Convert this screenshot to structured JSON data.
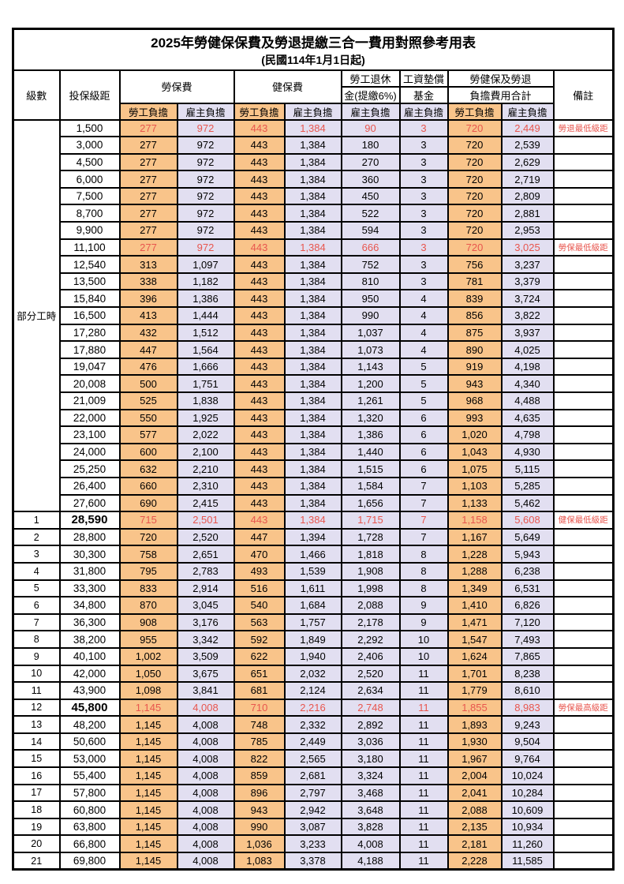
{
  "title": "2025年勞健保保費及勞退提繳三合一費用對照參考用表",
  "subtitle": "(民國114年1月1日起)",
  "colors": {
    "employee_column_bg": "#f9c48a",
    "employer_column_bg": "#e2dff1",
    "highlight_red": "#e8564e"
  },
  "header": {
    "level": "級數",
    "salary": "投保級距",
    "labor_fee": "勞保費",
    "health_fee": "健保費",
    "pension_line1": "勞工退休",
    "pension_line2": "金(提繳6%)",
    "wage_fund_line1": "工資墊償",
    "wage_fund_line2": "基金",
    "total_line1": "勞健保及勞退",
    "total_line2": "負擔費用合計",
    "remark": "備註",
    "employee": "勞工負擔",
    "employer": "雇主負擔"
  },
  "part_time_label": "部分工時",
  "rows": [
    {
      "level": "",
      "salary": "1,500",
      "values": [
        "277",
        "972",
        "443",
        "1,384",
        "90",
        "3",
        "720",
        "2,449"
      ],
      "remark": "勞退最低級距",
      "red": true,
      "bold": false
    },
    {
      "level": "",
      "salary": "3,000",
      "values": [
        "277",
        "972",
        "443",
        "1,384",
        "180",
        "3",
        "720",
        "2,539"
      ],
      "remark": "",
      "red": false,
      "bold": false
    },
    {
      "level": "",
      "salary": "4,500",
      "values": [
        "277",
        "972",
        "443",
        "1,384",
        "270",
        "3",
        "720",
        "2,629"
      ],
      "remark": "",
      "red": false,
      "bold": false
    },
    {
      "level": "",
      "salary": "6,000",
      "values": [
        "277",
        "972",
        "443",
        "1,384",
        "360",
        "3",
        "720",
        "2,719"
      ],
      "remark": "",
      "red": false,
      "bold": false
    },
    {
      "level": "",
      "salary": "7,500",
      "values": [
        "277",
        "972",
        "443",
        "1,384",
        "450",
        "3",
        "720",
        "2,809"
      ],
      "remark": "",
      "red": false,
      "bold": false
    },
    {
      "level": "",
      "salary": "8,700",
      "values": [
        "277",
        "972",
        "443",
        "1,384",
        "522",
        "3",
        "720",
        "2,881"
      ],
      "remark": "",
      "red": false,
      "bold": false
    },
    {
      "level": "",
      "salary": "9,900",
      "values": [
        "277",
        "972",
        "443",
        "1,384",
        "594",
        "3",
        "720",
        "2,953"
      ],
      "remark": "",
      "red": false,
      "bold": false
    },
    {
      "level": "",
      "salary": "11,100",
      "values": [
        "277",
        "972",
        "443",
        "1,384",
        "666",
        "3",
        "720",
        "3,025"
      ],
      "remark": "勞保最低級距",
      "red": true,
      "bold": false
    },
    {
      "level": "",
      "salary": "12,540",
      "values": [
        "313",
        "1,097",
        "443",
        "1,384",
        "752",
        "3",
        "756",
        "3,237"
      ],
      "remark": "",
      "red": false,
      "bold": false
    },
    {
      "level": "",
      "salary": "13,500",
      "values": [
        "338",
        "1,182",
        "443",
        "1,384",
        "810",
        "3",
        "781",
        "3,379"
      ],
      "remark": "",
      "red": false,
      "bold": false
    },
    {
      "level": "",
      "salary": "15,840",
      "values": [
        "396",
        "1,386",
        "443",
        "1,384",
        "950",
        "4",
        "839",
        "3,724"
      ],
      "remark": "",
      "red": false,
      "bold": false
    },
    {
      "level": "",
      "salary": "16,500",
      "values": [
        "413",
        "1,444",
        "443",
        "1,384",
        "990",
        "4",
        "856",
        "3,822"
      ],
      "remark": "",
      "red": false,
      "bold": false
    },
    {
      "level": "",
      "salary": "17,280",
      "values": [
        "432",
        "1,512",
        "443",
        "1,384",
        "1,037",
        "4",
        "875",
        "3,937"
      ],
      "remark": "",
      "red": false,
      "bold": false
    },
    {
      "level": "",
      "salary": "17,880",
      "values": [
        "447",
        "1,564",
        "443",
        "1,384",
        "1,073",
        "4",
        "890",
        "4,025"
      ],
      "remark": "",
      "red": false,
      "bold": false
    },
    {
      "level": "",
      "salary": "19,047",
      "values": [
        "476",
        "1,666",
        "443",
        "1,384",
        "1,143",
        "5",
        "919",
        "4,198"
      ],
      "remark": "",
      "red": false,
      "bold": false
    },
    {
      "level": "",
      "salary": "20,008",
      "values": [
        "500",
        "1,751",
        "443",
        "1,384",
        "1,200",
        "5",
        "943",
        "4,340"
      ],
      "remark": "",
      "red": false,
      "bold": false
    },
    {
      "level": "",
      "salary": "21,009",
      "values": [
        "525",
        "1,838",
        "443",
        "1,384",
        "1,261",
        "5",
        "968",
        "4,488"
      ],
      "remark": "",
      "red": false,
      "bold": false
    },
    {
      "level": "",
      "salary": "22,000",
      "values": [
        "550",
        "1,925",
        "443",
        "1,384",
        "1,320",
        "6",
        "993",
        "4,635"
      ],
      "remark": "",
      "red": false,
      "bold": false
    },
    {
      "level": "",
      "salary": "23,100",
      "values": [
        "577",
        "2,022",
        "443",
        "1,384",
        "1,386",
        "6",
        "1,020",
        "4,798"
      ],
      "remark": "",
      "red": false,
      "bold": false
    },
    {
      "level": "",
      "salary": "24,000",
      "values": [
        "600",
        "2,100",
        "443",
        "1,384",
        "1,440",
        "6",
        "1,043",
        "4,930"
      ],
      "remark": "",
      "red": false,
      "bold": false
    },
    {
      "level": "",
      "salary": "25,250",
      "values": [
        "632",
        "2,210",
        "443",
        "1,384",
        "1,515",
        "6",
        "1,075",
        "5,115"
      ],
      "remark": "",
      "red": false,
      "bold": false
    },
    {
      "level": "",
      "salary": "26,400",
      "values": [
        "660",
        "2,310",
        "443",
        "1,384",
        "1,584",
        "7",
        "1,103",
        "5,285"
      ],
      "remark": "",
      "red": false,
      "bold": false
    },
    {
      "level": "",
      "salary": "27,600",
      "values": [
        "690",
        "2,415",
        "443",
        "1,384",
        "1,656",
        "7",
        "1,133",
        "5,462"
      ],
      "remark": "",
      "red": false,
      "bold": false
    },
    {
      "level": "1",
      "salary": "28,590",
      "values": [
        "715",
        "2,501",
        "443",
        "1,384",
        "1,715",
        "7",
        "1,158",
        "5,608"
      ],
      "remark": "健保最低級距",
      "red": true,
      "bold": true
    },
    {
      "level": "2",
      "salary": "28,800",
      "values": [
        "720",
        "2,520",
        "447",
        "1,394",
        "1,728",
        "7",
        "1,167",
        "5,649"
      ],
      "remark": "",
      "red": false,
      "bold": false
    },
    {
      "level": "3",
      "salary": "30,300",
      "values": [
        "758",
        "2,651",
        "470",
        "1,466",
        "1,818",
        "8",
        "1,228",
        "5,943"
      ],
      "remark": "",
      "red": false,
      "bold": false
    },
    {
      "level": "4",
      "salary": "31,800",
      "values": [
        "795",
        "2,783",
        "493",
        "1,539",
        "1,908",
        "8",
        "1,288",
        "6,238"
      ],
      "remark": "",
      "red": false,
      "bold": false
    },
    {
      "level": "5",
      "salary": "33,300",
      "values": [
        "833",
        "2,914",
        "516",
        "1,611",
        "1,998",
        "8",
        "1,349",
        "6,531"
      ],
      "remark": "",
      "red": false,
      "bold": false
    },
    {
      "level": "6",
      "salary": "34,800",
      "values": [
        "870",
        "3,045",
        "540",
        "1,684",
        "2,088",
        "9",
        "1,410",
        "6,826"
      ],
      "remark": "",
      "red": false,
      "bold": false
    },
    {
      "level": "7",
      "salary": "36,300",
      "values": [
        "908",
        "3,176",
        "563",
        "1,757",
        "2,178",
        "9",
        "1,471",
        "7,120"
      ],
      "remark": "",
      "red": false,
      "bold": false
    },
    {
      "level": "8",
      "salary": "38,200",
      "values": [
        "955",
        "3,342",
        "592",
        "1,849",
        "2,292",
        "10",
        "1,547",
        "7,493"
      ],
      "remark": "",
      "red": false,
      "bold": false
    },
    {
      "level": "9",
      "salary": "40,100",
      "values": [
        "1,002",
        "3,509",
        "622",
        "1,940",
        "2,406",
        "10",
        "1,624",
        "7,865"
      ],
      "remark": "",
      "red": false,
      "bold": false
    },
    {
      "level": "10",
      "salary": "42,000",
      "values": [
        "1,050",
        "3,675",
        "651",
        "2,032",
        "2,520",
        "11",
        "1,701",
        "8,238"
      ],
      "remark": "",
      "red": false,
      "bold": false
    },
    {
      "level": "11",
      "salary": "43,900",
      "values": [
        "1,098",
        "3,841",
        "681",
        "2,124",
        "2,634",
        "11",
        "1,779",
        "8,610"
      ],
      "remark": "",
      "red": false,
      "bold": false
    },
    {
      "level": "12",
      "salary": "45,800",
      "values": [
        "1,145",
        "4,008",
        "710",
        "2,216",
        "2,748",
        "11",
        "1,855",
        "8,983"
      ],
      "remark": "勞保最高級距",
      "red": true,
      "bold": true
    },
    {
      "level": "13",
      "salary": "48,200",
      "values": [
        "1,145",
        "4,008",
        "748",
        "2,332",
        "2,892",
        "11",
        "1,893",
        "9,243"
      ],
      "remark": "",
      "red": false,
      "bold": false
    },
    {
      "level": "14",
      "salary": "50,600",
      "values": [
        "1,145",
        "4,008",
        "785",
        "2,449",
        "3,036",
        "11",
        "1,930",
        "9,504"
      ],
      "remark": "",
      "red": false,
      "bold": false
    },
    {
      "level": "15",
      "salary": "53,000",
      "values": [
        "1,145",
        "4,008",
        "822",
        "2,565",
        "3,180",
        "11",
        "1,967",
        "9,764"
      ],
      "remark": "",
      "red": false,
      "bold": false
    },
    {
      "level": "16",
      "salary": "55,400",
      "values": [
        "1,145",
        "4,008",
        "859",
        "2,681",
        "3,324",
        "11",
        "2,004",
        "10,024"
      ],
      "remark": "",
      "red": false,
      "bold": false
    },
    {
      "level": "17",
      "salary": "57,800",
      "values": [
        "1,145",
        "4,008",
        "896",
        "2,797",
        "3,468",
        "11",
        "2,041",
        "10,284"
      ],
      "remark": "",
      "red": false,
      "bold": false
    },
    {
      "level": "18",
      "salary": "60,800",
      "values": [
        "1,145",
        "4,008",
        "943",
        "2,942",
        "3,648",
        "11",
        "2,088",
        "10,609"
      ],
      "remark": "",
      "red": false,
      "bold": false
    },
    {
      "level": "19",
      "salary": "63,800",
      "values": [
        "1,145",
        "4,008",
        "990",
        "3,087",
        "3,828",
        "11",
        "2,135",
        "10,934"
      ],
      "remark": "",
      "red": false,
      "bold": false
    },
    {
      "level": "20",
      "salary": "66,800",
      "values": [
        "1,145",
        "4,008",
        "1,036",
        "3,233",
        "4,008",
        "11",
        "2,181",
        "11,260"
      ],
      "remark": "",
      "red": false,
      "bold": false
    },
    {
      "level": "21",
      "salary": "69,800",
      "values": [
        "1,145",
        "4,008",
        "1,083",
        "3,378",
        "4,188",
        "11",
        "2,228",
        "11,585"
      ],
      "remark": "",
      "red": false,
      "bold": false
    }
  ]
}
